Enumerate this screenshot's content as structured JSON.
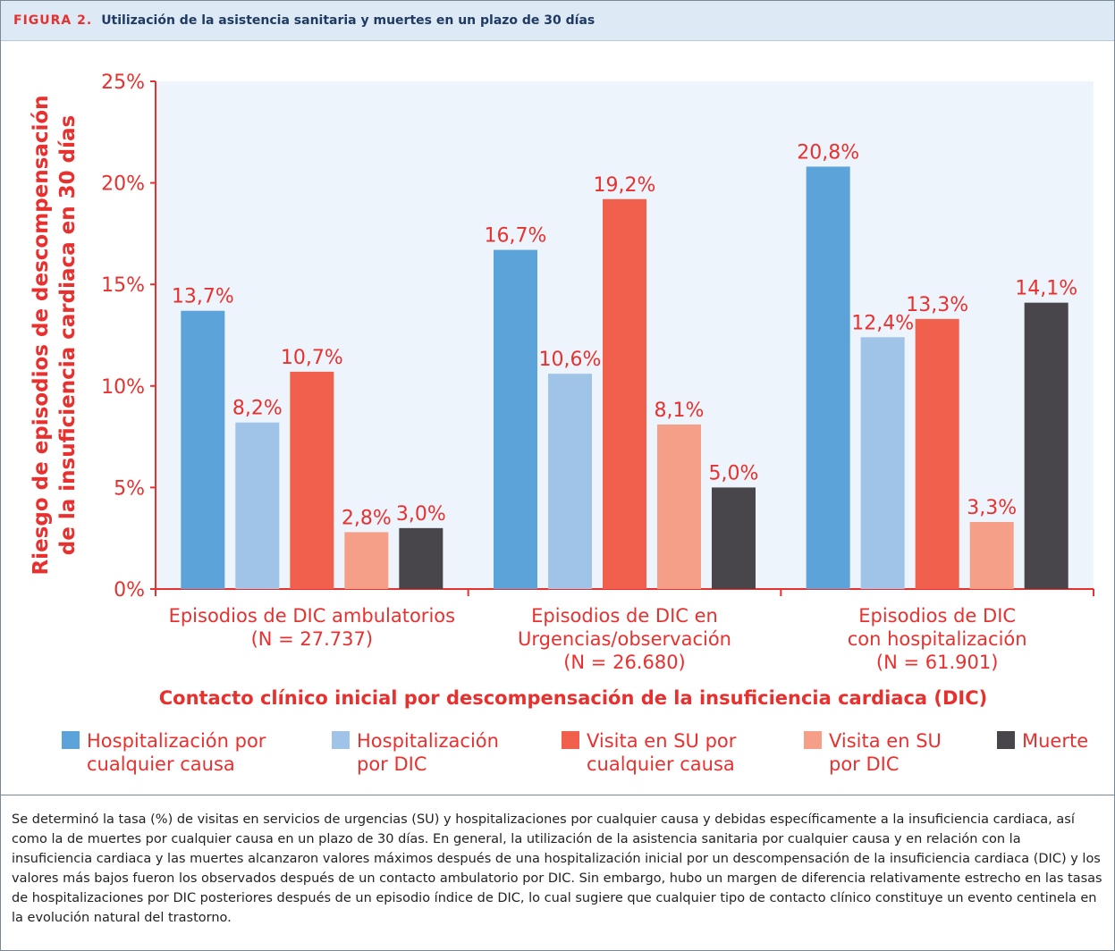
{
  "header": {
    "label": "FIGURA 2.",
    "title": "Utilización de la asistencia sanitaria y muertes en un plazo de 30 días"
  },
  "chart_data": {
    "type": "bar",
    "ylabel": "Riesgo de episodios de descompensación\nde la insuficiencia cardiaca en 30 días",
    "xlabel": "Contacto clínico inicial por descompensación de la insuficiencia cardiaca (DIC)",
    "categories": [
      "Episodios de DIC ambulatorios\n(N = 27.737)",
      "Episodios de DIC en\nUrgencias/observación\n(N = 26.680)",
      "Episodios de DIC\ncon hospitalización\n(N = 61.901)"
    ],
    "series": [
      {
        "name": "Hospitalización por\ncualquier causa",
        "color": "#5ba3d9",
        "values": [
          13.7,
          16.7,
          20.8
        ],
        "value_labels": [
          "13,7%",
          "16,7%",
          "20,8%"
        ]
      },
      {
        "name": "Hospitalización\npor DIC",
        "color": "#a0c4e8",
        "values": [
          8.2,
          10.6,
          12.4
        ],
        "value_labels": [
          "8,2%",
          "10,6%",
          "12,4%"
        ]
      },
      {
        "name": "Visita en SU por\ncualquier causa",
        "color": "#f0604d",
        "values": [
          10.7,
          19.2,
          13.3
        ],
        "value_labels": [
          "10,7%",
          "19,2%",
          "13,3%"
        ]
      },
      {
        "name": "Visita en SU\npor DIC",
        "color": "#f59e88",
        "values": [
          2.8,
          8.1,
          3.3
        ],
        "value_labels": [
          "2,8%",
          "8,1%",
          "3,3%"
        ]
      },
      {
        "name": "Muerte",
        "color": "#48464a",
        "values": [
          3.0,
          5.0,
          14.1
        ],
        "value_labels": [
          "3,0%",
          "5,0%",
          "14,1%"
        ]
      }
    ],
    "ylim": [
      0,
      25
    ],
    "yticks": [
      {
        "value": 0,
        "label": "0%"
      },
      {
        "value": 5,
        "label": "5%"
      },
      {
        "value": 10,
        "label": "10%"
      },
      {
        "value": 15,
        "label": "15%"
      },
      {
        "value": 20,
        "label": "20%"
      },
      {
        "value": 25,
        "label": "25%"
      }
    ]
  },
  "caption": "Se determinó la tasa (%) de visitas en servicios de urgencias (SU) y hospitalizaciones por cualquier causa y debidas específicamente a la insuficiencia cardiaca, así como la de muertes por cualquier causa en un plazo de 30 días. En general, la utilización de la asistencia sanitaria por cualquier causa y en relación con la insuficiencia cardiaca y las muertes alcanzaron valores máximos después de una hospitalización inicial por un descompensación de la insuficiencia cardiaca (DIC) y los valores más bajos fueron los observados después de un contacto ambulatorio por DIC. Sin embargo, hubo un margen de diferencia relativamente estrecho en las tasas de hospitalizaciones por DIC posteriores después de un episodio índice de DIC, lo cual sugiere que cualquier tipo de contacto clínico constituye un evento centinela en la evolución natural del trastorno."
}
